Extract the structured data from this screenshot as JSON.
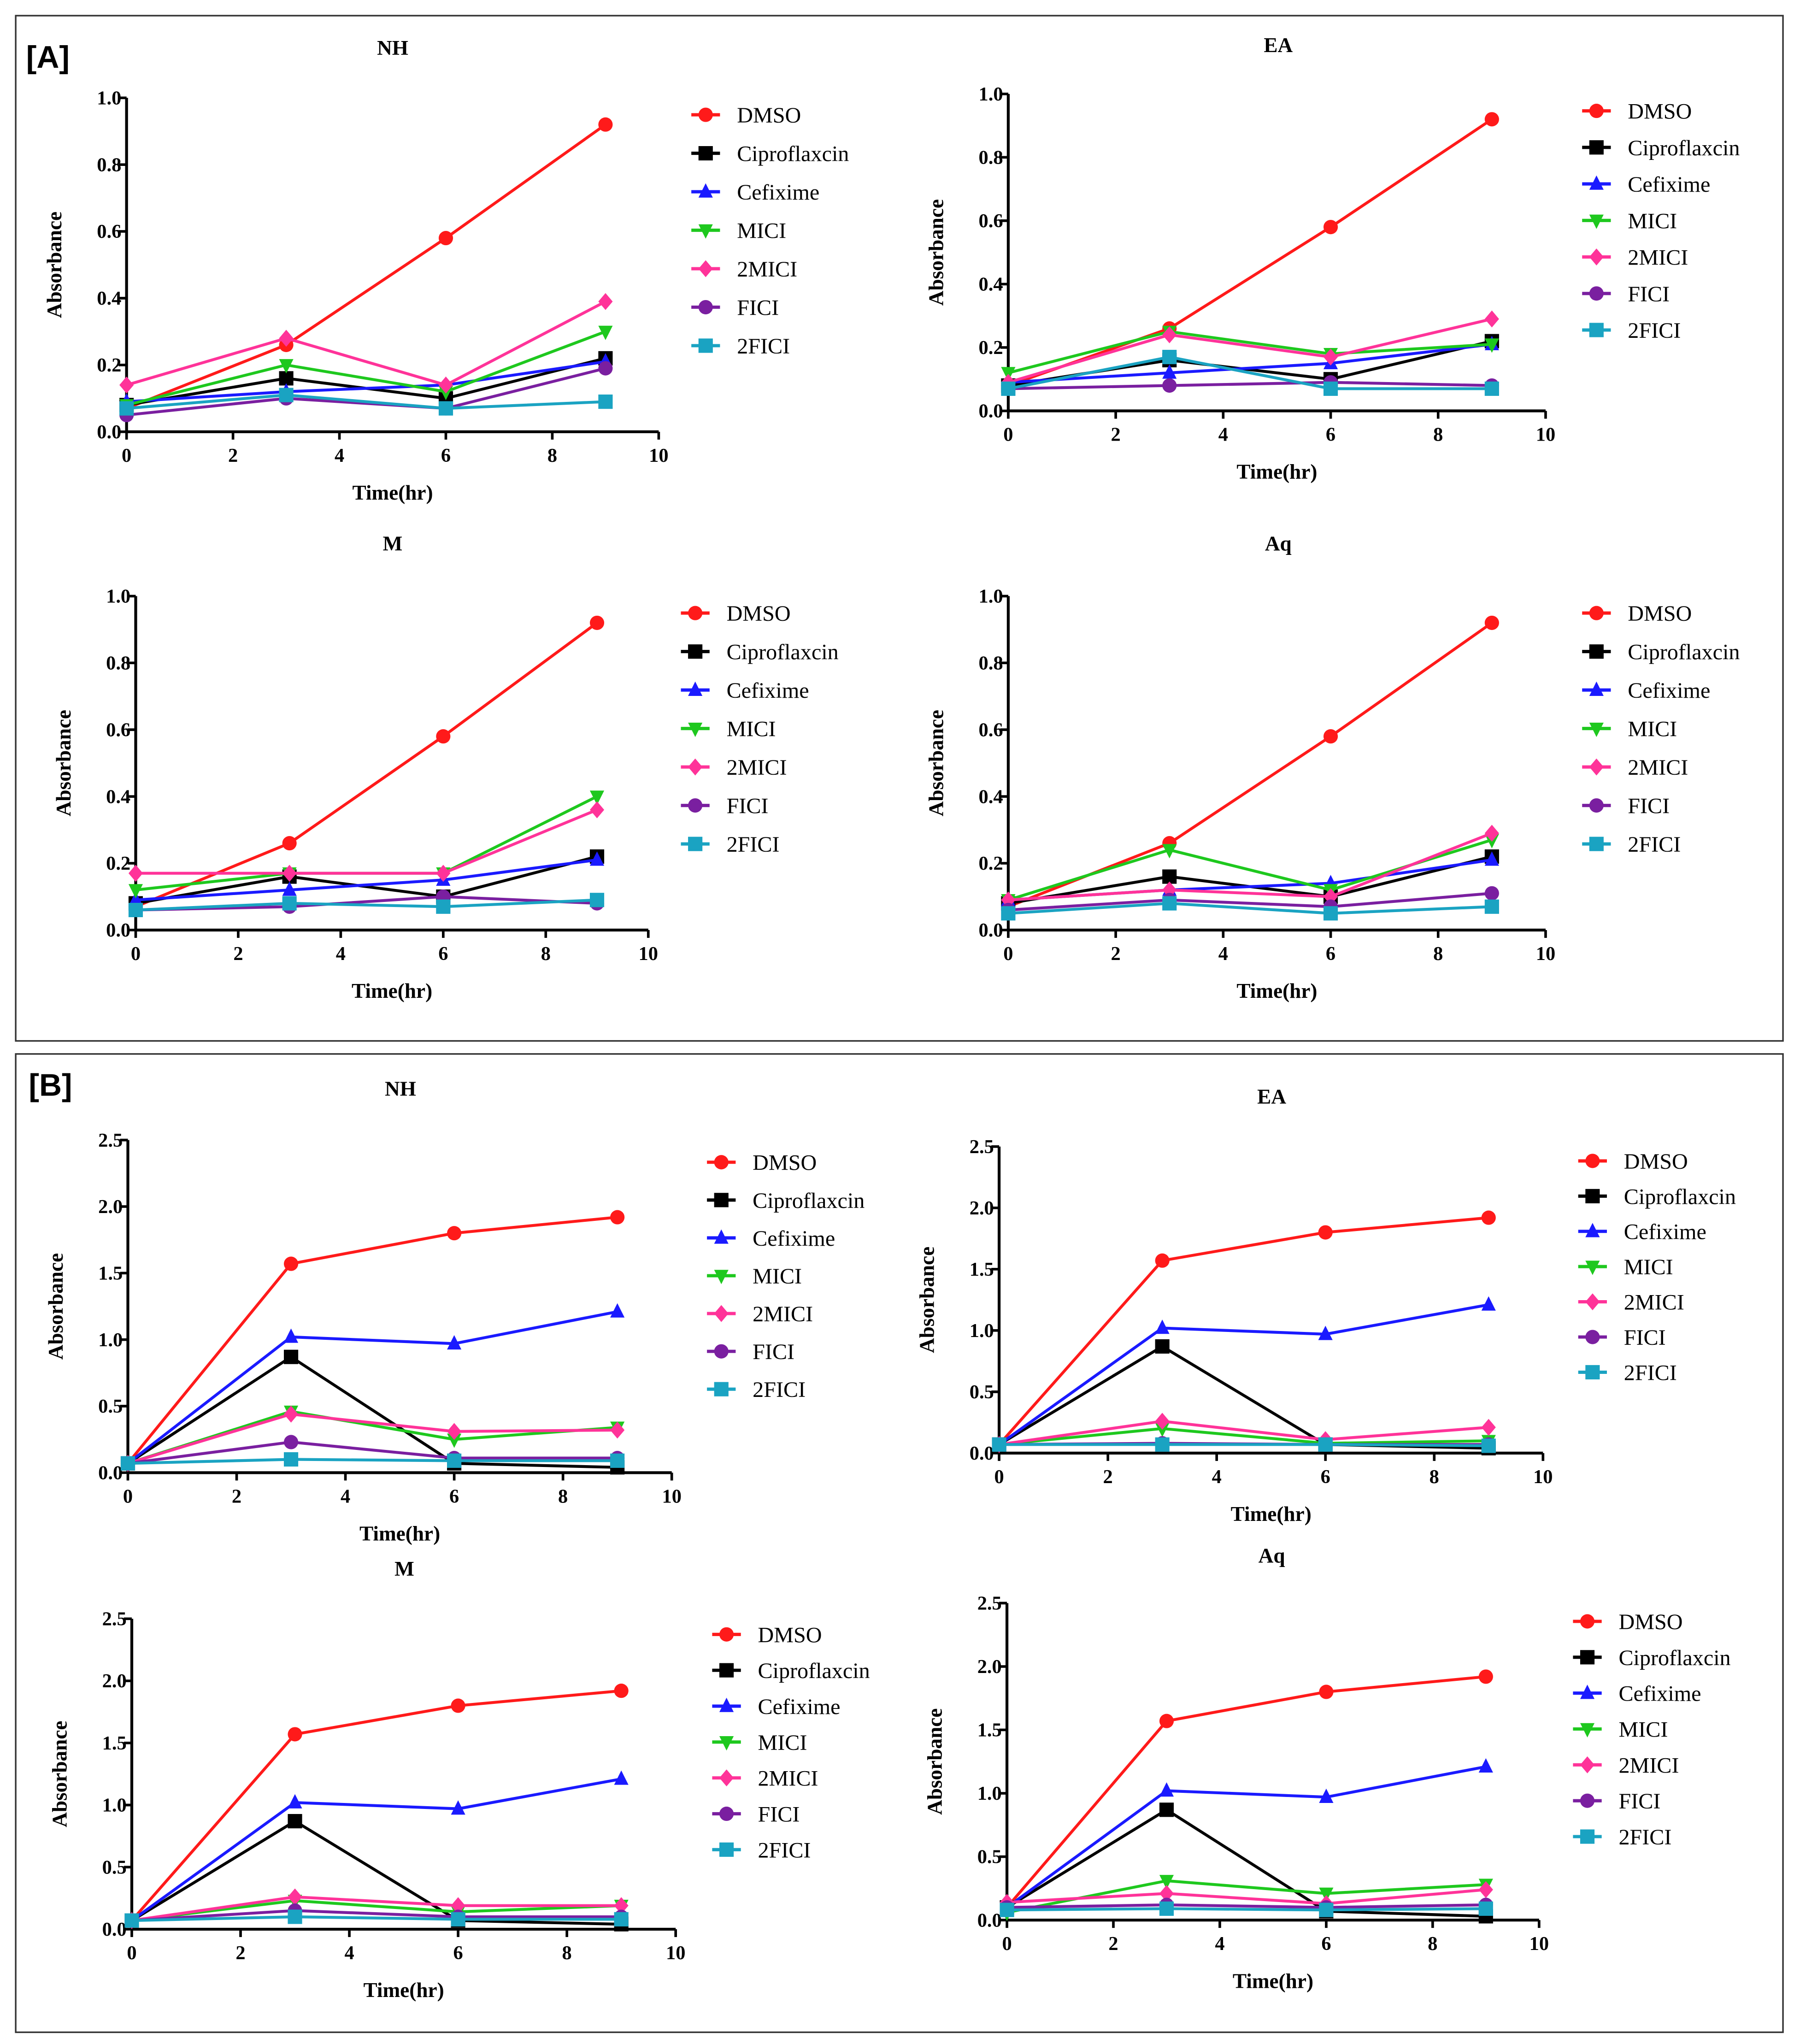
{
  "panel_labels": [
    "[A]",
    "[B]"
  ],
  "colors": {
    "DMSO": "#ff1a1a",
    "Ciproflaxcin": "#000000",
    "Cefixime": "#1a1aff",
    "MICI": "#1ec81e",
    "2MICI": "#ff3399",
    "FICI": "#7a1fa0",
    "2FICI": "#1aa3c2"
  },
  "markers": {
    "DMSO": "circle",
    "Ciproflaxcin": "square",
    "Cefixime": "triangle-up",
    "MICI": "triangle-down",
    "2MICI": "diamond",
    "FICI": "circle",
    "2FICI": "square"
  },
  "chart_data": [
    {
      "type": "line",
      "group": "[A]",
      "title": "NH",
      "xlabel": "Time(hr)",
      "ylabel": "Absorbance",
      "xlim": [
        0,
        10
      ],
      "ylim": [
        0,
        1.0
      ],
      "xticks": [
        "0",
        "2",
        "4",
        "6",
        "8",
        "10"
      ],
      "yticks": [
        "0.0",
        "0.2",
        "0.4",
        "0.6",
        "0.8",
        "1.0"
      ],
      "legend": "right",
      "grid": false,
      "x": [
        0,
        3,
        6,
        9
      ],
      "series": [
        {
          "name": "DMSO",
          "values": [
            0.07,
            0.26,
            0.58,
            0.92
          ]
        },
        {
          "name": "Ciproflaxcin",
          "values": [
            0.08,
            0.16,
            0.1,
            0.22
          ]
        },
        {
          "name": "Cefixime",
          "values": [
            0.09,
            0.12,
            0.14,
            0.21
          ]
        },
        {
          "name": "MICI",
          "values": [
            0.08,
            0.2,
            0.12,
            0.3
          ]
        },
        {
          "name": "2MICI",
          "values": [
            0.14,
            0.28,
            0.14,
            0.39
          ]
        },
        {
          "name": "FICI",
          "values": [
            0.05,
            0.1,
            0.07,
            0.19
          ]
        },
        {
          "name": "2FICI",
          "values": [
            0.07,
            0.11,
            0.07,
            0.09
          ]
        }
      ]
    },
    {
      "type": "line",
      "group": "[A]",
      "title": "EA",
      "xlabel": "Time(hr)",
      "ylabel": "Absorbance",
      "xlim": [
        0,
        10
      ],
      "ylim": [
        0,
        1.0
      ],
      "xticks": [
        "0",
        "2",
        "4",
        "6",
        "8",
        "10"
      ],
      "yticks": [
        "0.0",
        "0.2",
        "0.4",
        "0.6",
        "0.8",
        "1.0"
      ],
      "legend": "right",
      "grid": false,
      "x": [
        0,
        3,
        6,
        9
      ],
      "series": [
        {
          "name": "DMSO",
          "values": [
            0.08,
            0.26,
            0.58,
            0.92
          ]
        },
        {
          "name": "Ciproflaxcin",
          "values": [
            0.08,
            0.16,
            0.1,
            0.22
          ]
        },
        {
          "name": "Cefixime",
          "values": [
            0.09,
            0.12,
            0.15,
            0.21
          ]
        },
        {
          "name": "MICI",
          "values": [
            0.12,
            0.25,
            0.18,
            0.21
          ]
        },
        {
          "name": "2MICI",
          "values": [
            0.09,
            0.24,
            0.17,
            0.29
          ]
        },
        {
          "name": "FICI",
          "values": [
            0.07,
            0.08,
            0.09,
            0.08
          ]
        },
        {
          "name": "2FICI",
          "values": [
            0.07,
            0.17,
            0.07,
            0.07
          ]
        }
      ]
    },
    {
      "type": "line",
      "group": "[A]",
      "title": "M",
      "xlabel": "Time(hr)",
      "ylabel": "Absorbance",
      "xlim": [
        0,
        10
      ],
      "ylim": [
        0,
        1.0
      ],
      "xticks": [
        "0",
        "2",
        "4",
        "6",
        "8",
        "10"
      ],
      "yticks": [
        "0.0",
        "0.2",
        "0.4",
        "0.6",
        "0.8",
        "1.0"
      ],
      "legend": "right",
      "grid": false,
      "x": [
        0,
        3,
        6,
        9
      ],
      "series": [
        {
          "name": "DMSO",
          "values": [
            0.07,
            0.26,
            0.58,
            0.92
          ]
        },
        {
          "name": "Ciproflaxcin",
          "values": [
            0.08,
            0.16,
            0.1,
            0.22
          ]
        },
        {
          "name": "Cefixime",
          "values": [
            0.09,
            0.12,
            0.15,
            0.21
          ]
        },
        {
          "name": "MICI",
          "values": [
            0.12,
            0.17,
            0.17,
            0.4
          ]
        },
        {
          "name": "2MICI",
          "values": [
            0.17,
            0.17,
            0.17,
            0.36
          ]
        },
        {
          "name": "FICI",
          "values": [
            0.06,
            0.07,
            0.1,
            0.08
          ]
        },
        {
          "name": "2FICI",
          "values": [
            0.06,
            0.08,
            0.07,
            0.09
          ]
        }
      ]
    },
    {
      "type": "line",
      "group": "[A]",
      "title": "Aq",
      "xlabel": "Time(hr)",
      "ylabel": "Absorbance",
      "xlim": [
        0,
        10
      ],
      "ylim": [
        0,
        1.0
      ],
      "xticks": [
        "0",
        "2",
        "4",
        "6",
        "8",
        "10"
      ],
      "yticks": [
        "0.0",
        "0.2",
        "0.4",
        "0.6",
        "0.8",
        "1.0"
      ],
      "legend": "right",
      "grid": false,
      "x": [
        0,
        3,
        6,
        9
      ],
      "series": [
        {
          "name": "DMSO",
          "values": [
            0.07,
            0.26,
            0.58,
            0.92
          ]
        },
        {
          "name": "Ciproflaxcin",
          "values": [
            0.08,
            0.16,
            0.1,
            0.22
          ]
        },
        {
          "name": "Cefixime",
          "values": [
            0.09,
            0.12,
            0.14,
            0.21
          ]
        },
        {
          "name": "MICI",
          "values": [
            0.09,
            0.24,
            0.12,
            0.27
          ]
        },
        {
          "name": "2MICI",
          "values": [
            0.09,
            0.12,
            0.1,
            0.29
          ]
        },
        {
          "name": "FICI",
          "values": [
            0.06,
            0.09,
            0.07,
            0.11
          ]
        },
        {
          "name": "2FICI",
          "values": [
            0.05,
            0.08,
            0.05,
            0.07
          ]
        }
      ]
    },
    {
      "type": "line",
      "group": "[B]",
      "title": "NH",
      "xlabel": "Time(hr)",
      "ylabel": "Absorbance",
      "xlim": [
        0,
        10
      ],
      "ylim": [
        0,
        2.5
      ],
      "xticks": [
        "0",
        "2",
        "4",
        "6",
        "8",
        "10"
      ],
      "yticks": [
        "0.0",
        "0.5",
        "1.0",
        "1.5",
        "2.0",
        "2.5"
      ],
      "legend": "right",
      "grid": false,
      "x": [
        0,
        3,
        6,
        9
      ],
      "series": [
        {
          "name": "DMSO",
          "values": [
            0.07,
            1.57,
            1.8,
            1.92
          ]
        },
        {
          "name": "Ciproflaxcin",
          "values": [
            0.07,
            0.87,
            0.07,
            0.04
          ]
        },
        {
          "name": "Cefixime",
          "values": [
            0.07,
            1.02,
            0.97,
            1.21
          ]
        },
        {
          "name": "MICI",
          "values": [
            0.07,
            0.46,
            0.25,
            0.34
          ]
        },
        {
          "name": "2MICI",
          "values": [
            0.07,
            0.44,
            0.31,
            0.32
          ]
        },
        {
          "name": "FICI",
          "values": [
            0.07,
            0.23,
            0.11,
            0.11
          ]
        },
        {
          "name": "2FICI",
          "values": [
            0.07,
            0.1,
            0.09,
            0.09
          ]
        }
      ]
    },
    {
      "type": "line",
      "group": "[B]",
      "title": "EA",
      "xlabel": "Time(hr)",
      "ylabel": "Absorbance",
      "xlim": [
        0,
        10
      ],
      "ylim": [
        0,
        2.5
      ],
      "xticks": [
        "0",
        "2",
        "4",
        "6",
        "8",
        "10"
      ],
      "yticks": [
        "0.0",
        "0.5",
        "1.0",
        "1.5",
        "2.0",
        "2.5"
      ],
      "legend": "right",
      "grid": false,
      "x": [
        0,
        3,
        6,
        9
      ],
      "series": [
        {
          "name": "DMSO",
          "values": [
            0.07,
            1.57,
            1.8,
            1.92
          ]
        },
        {
          "name": "Ciproflaxcin",
          "values": [
            0.07,
            0.87,
            0.07,
            0.04
          ]
        },
        {
          "name": "Cefixime",
          "values": [
            0.07,
            1.02,
            0.97,
            1.21
          ]
        },
        {
          "name": "MICI",
          "values": [
            0.07,
            0.2,
            0.08,
            0.1
          ]
        },
        {
          "name": "2MICI",
          "values": [
            0.07,
            0.26,
            0.11,
            0.21
          ]
        },
        {
          "name": "FICI",
          "values": [
            0.07,
            0.08,
            0.07,
            0.07
          ]
        },
        {
          "name": "2FICI",
          "values": [
            0.07,
            0.07,
            0.07,
            0.06
          ]
        }
      ]
    },
    {
      "type": "line",
      "group": "[B]",
      "title": "M",
      "xlabel": "Time(hr)",
      "ylabel": "Absorbance",
      "xlim": [
        0,
        10
      ],
      "ylim": [
        0,
        2.5
      ],
      "xticks": [
        "0",
        "2",
        "4",
        "6",
        "8",
        "10"
      ],
      "yticks": [
        "0.0",
        "0.5",
        "1.0",
        "1.5",
        "2.0",
        "2.5"
      ],
      "legend": "right",
      "grid": false,
      "x": [
        0,
        3,
        6,
        9
      ],
      "series": [
        {
          "name": "DMSO",
          "values": [
            0.07,
            1.57,
            1.8,
            1.92
          ]
        },
        {
          "name": "Ciproflaxcin",
          "values": [
            0.07,
            0.87,
            0.07,
            0.04
          ]
        },
        {
          "name": "Cefixime",
          "values": [
            0.07,
            1.02,
            0.97,
            1.21
          ]
        },
        {
          "name": "MICI",
          "values": [
            0.07,
            0.23,
            0.14,
            0.19
          ]
        },
        {
          "name": "2MICI",
          "values": [
            0.07,
            0.26,
            0.19,
            0.19
          ]
        },
        {
          "name": "FICI",
          "values": [
            0.07,
            0.15,
            0.1,
            0.1
          ]
        },
        {
          "name": "2FICI",
          "values": [
            0.07,
            0.1,
            0.08,
            0.08
          ]
        }
      ]
    },
    {
      "type": "line",
      "group": "[B]",
      "title": "Aq",
      "xlabel": "Time(hr)",
      "ylabel": "Absorbance",
      "xlim": [
        0,
        10
      ],
      "ylim": [
        0,
        2.5
      ],
      "xticks": [
        "0",
        "2",
        "4",
        "6",
        "8",
        "10"
      ],
      "yticks": [
        "0.0",
        "0.5",
        "1.0",
        "1.5",
        "2.0",
        "2.5"
      ],
      "legend": "right",
      "grid": false,
      "x": [
        0,
        3,
        6,
        9
      ],
      "series": [
        {
          "name": "DMSO",
          "values": [
            0.1,
            1.57,
            1.8,
            1.92
          ]
        },
        {
          "name": "Ciproflaxcin",
          "values": [
            0.1,
            0.87,
            0.07,
            0.03
          ]
        },
        {
          "name": "Cefixime",
          "values": [
            0.1,
            1.02,
            0.97,
            1.21
          ]
        },
        {
          "name": "MICI",
          "values": [
            0.06,
            0.31,
            0.21,
            0.28
          ]
        },
        {
          "name": "2MICI",
          "values": [
            0.14,
            0.21,
            0.13,
            0.24
          ]
        },
        {
          "name": "FICI",
          "values": [
            0.1,
            0.12,
            0.1,
            0.12
          ]
        },
        {
          "name": "2FICI",
          "values": [
            0.08,
            0.09,
            0.08,
            0.09
          ]
        }
      ]
    }
  ]
}
